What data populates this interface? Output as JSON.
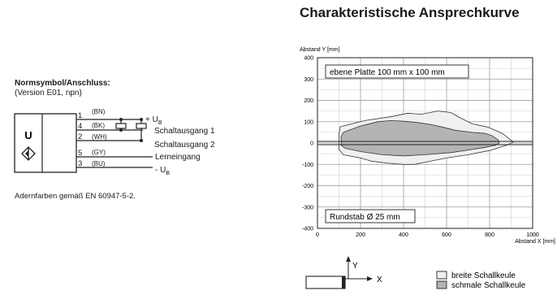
{
  "page_title": "Charakteristische Ansprechkurve",
  "connection": {
    "title": "Normsymbol/Anschluss:",
    "subtitle": "(Version E01, npn)",
    "symbol_letter": "U",
    "pins": [
      {
        "number": "1",
        "color": "(BN)",
        "label": "+ U",
        "sub": "B"
      },
      {
        "number": "4",
        "color": "(BK)",
        "label": "Schaltausgang 1",
        "sub": ""
      },
      {
        "number": "2",
        "color": "(WH)",
        "label": "Schaltausgang 2",
        "sub": ""
      },
      {
        "number": "5",
        "color": "(GY)",
        "label": "Lerneingang",
        "sub": ""
      },
      {
        "number": "3",
        "color": "(BU)",
        "label": "- U",
        "sub": "B"
      }
    ],
    "note": "Adernfarben gemäß EN 60947-5-2."
  },
  "chart_data": {
    "type": "area",
    "ylabel": "Abstand Y [mm]",
    "xlabel": "Abstand X [mm]",
    "xlim": [
      0,
      1000
    ],
    "ylim": [
      -400,
      400
    ],
    "x_ticks": [
      0,
      200,
      400,
      600,
      800,
      1000
    ],
    "y_ticks": [
      400,
      300,
      200,
      100,
      0,
      -100,
      -200,
      -300,
      -400
    ],
    "grid": true,
    "annotations": [
      "ebene Platte 100 mm x 100 mm",
      "Rundstab Ø 25 mm"
    ],
    "series": [
      {
        "name": "breite Schallkeule",
        "fill": "#f0f0f0",
        "points": [
          [
            120,
            80
          ],
          [
            220,
            105
          ],
          [
            350,
            125
          ],
          [
            420,
            140
          ],
          [
            480,
            135
          ],
          [
            560,
            150
          ],
          [
            620,
            143
          ],
          [
            660,
            120
          ],
          [
            720,
            90
          ],
          [
            790,
            75
          ],
          [
            860,
            45
          ],
          [
            910,
            5
          ],
          [
            880,
            -10
          ],
          [
            800,
            -35
          ],
          [
            700,
            -55
          ],
          [
            600,
            -70
          ],
          [
            500,
            -90
          ],
          [
            450,
            -100
          ],
          [
            400,
            -100
          ],
          [
            330,
            -95
          ],
          [
            250,
            -85
          ],
          [
            200,
            -70
          ],
          [
            120,
            -55
          ],
          [
            100,
            -30
          ],
          [
            100,
            40
          ],
          [
            105,
            75
          ]
        ]
      },
      {
        "name": "schmale Schallkeule",
        "fill": "#b4b4b4",
        "points": [
          [
            120,
            50
          ],
          [
            200,
            80
          ],
          [
            280,
            100
          ],
          [
            340,
            105
          ],
          [
            400,
            102
          ],
          [
            450,
            98
          ],
          [
            520,
            88
          ],
          [
            580,
            75
          ],
          [
            640,
            60
          ],
          [
            720,
            50
          ],
          [
            780,
            45
          ],
          [
            810,
            35
          ],
          [
            840,
            15
          ],
          [
            845,
            0
          ],
          [
            830,
            -10
          ],
          [
            780,
            -20
          ],
          [
            720,
            -30
          ],
          [
            620,
            -45
          ],
          [
            500,
            -55
          ],
          [
            400,
            -60
          ],
          [
            300,
            -55
          ],
          [
            200,
            -40
          ],
          [
            130,
            -25
          ],
          [
            110,
            -10
          ],
          [
            110,
            30
          ]
        ]
      }
    ],
    "centerline": {
      "x": [
        0,
        1000
      ],
      "y": [
        0,
        0
      ]
    }
  },
  "legend": {
    "axis_y": "Y",
    "axis_x": "X",
    "items": [
      {
        "label": "breite Schallkeule",
        "color": "#f0f0f0"
      },
      {
        "label": "schmale Schallkeule",
        "color": "#b4b4b4"
      }
    ]
  }
}
